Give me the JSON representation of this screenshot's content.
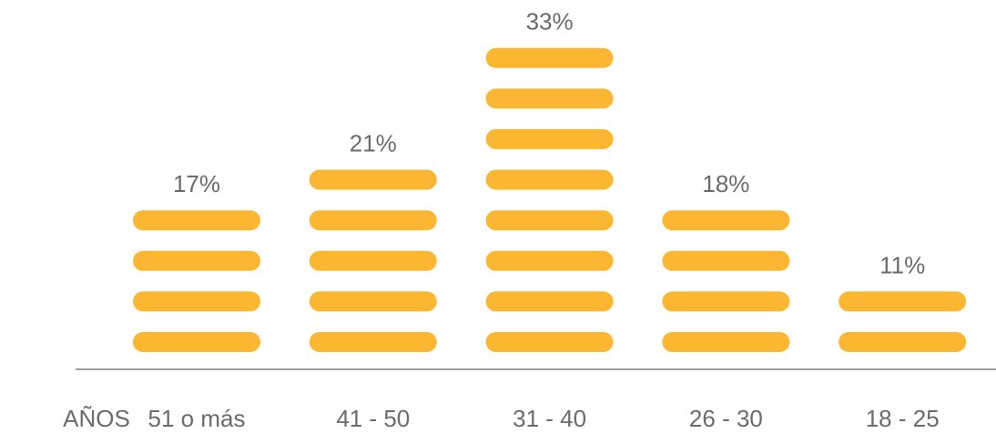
{
  "chart_data": {
    "type": "pictogram",
    "x_label": "AÑOS",
    "categories": [
      "51 o más",
      "41 - 50",
      "31 - 40",
      "26 - 30",
      "18 - 25"
    ],
    "values": [
      17,
      21,
      33,
      18,
      11
    ],
    "value_labels": [
      "17%",
      "21%",
      "33%",
      "18%",
      "11%"
    ],
    "color": "#fbb731"
  }
}
